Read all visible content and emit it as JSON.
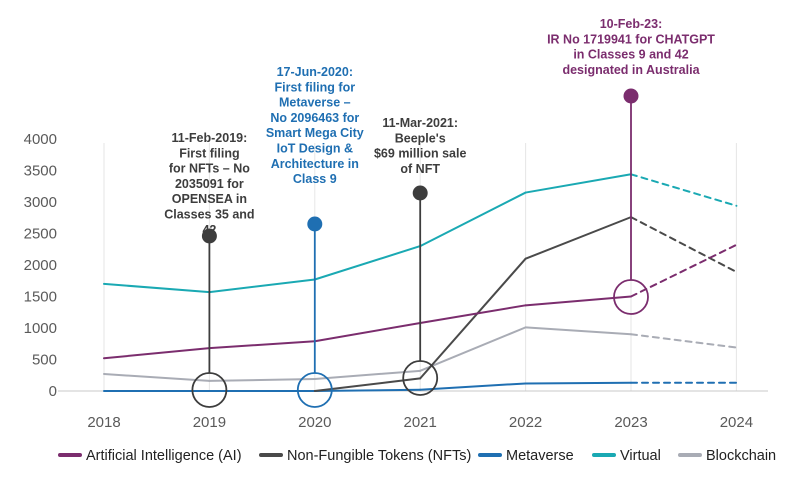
{
  "chart_data": {
    "type": "line",
    "categories": [
      "2018",
      "2019",
      "2020",
      "2021",
      "2022",
      "2023",
      "2024"
    ],
    "ylim": [
      0,
      4000
    ],
    "yticks": [
      0,
      500,
      1000,
      1500,
      2000,
      2500,
      3000,
      3500,
      4000
    ],
    "grid": false,
    "legend_position": "bottom",
    "series": [
      {
        "name": "Artificial Intelligence (AI)",
        "color": "#7b2d6e",
        "values": [
          520,
          680,
          790,
          1080,
          1360,
          1500,
          2320
        ],
        "projected_from": 5
      },
      {
        "name": "Non-Fungible Tokens (NFTs)",
        "color": "#4a4a4a",
        "values": [
          null,
          null,
          0,
          200,
          2100,
          2760,
          1890
        ],
        "projected_from": 5
      },
      {
        "name": "Metaverse",
        "color": "#1f6fb2",
        "values": [
          0,
          0,
          0,
          20,
          120,
          130,
          130
        ],
        "projected_from": 5
      },
      {
        "name": "Virtual",
        "color": "#1aa9b3",
        "values": [
          1700,
          1570,
          1770,
          2300,
          3150,
          3440,
          2940
        ],
        "projected_from": 5
      },
      {
        "name": "Blockchain",
        "color": "#a9acb5",
        "values": [
          270,
          160,
          190,
          320,
          1010,
          900,
          690
        ],
        "projected_from": 5
      }
    ],
    "annotations": [
      {
        "x": "2019",
        "color": "#3d3d3d",
        "lines": [
          "11-Feb-2019:",
          "First filing",
          "for NFTs – No",
          "2035091 for",
          "OPENSEA in",
          "Classes 35 and",
          "42"
        ]
      },
      {
        "x": "2020",
        "color": "#1f6fb2",
        "lines": [
          "17-Jun-2020:",
          "First filing for",
          "Metaverse –",
          "No 2096463 for",
          "Smart Mega City",
          "IoT Design &",
          "Architecture in",
          "Class 9"
        ]
      },
      {
        "x": "2021",
        "color": "#3d3d3d",
        "lines": [
          "11-Mar-2021:",
          "Beeple's",
          "$69 million sale",
          "of NFT"
        ]
      },
      {
        "x": "2023",
        "color": "#7b2d6e",
        "lines": [
          "10-Feb-23:",
          "IR No 1719941 for CHATGPT",
          "in Classes 9 and 42",
          "designated in Australia"
        ]
      }
    ]
  }
}
